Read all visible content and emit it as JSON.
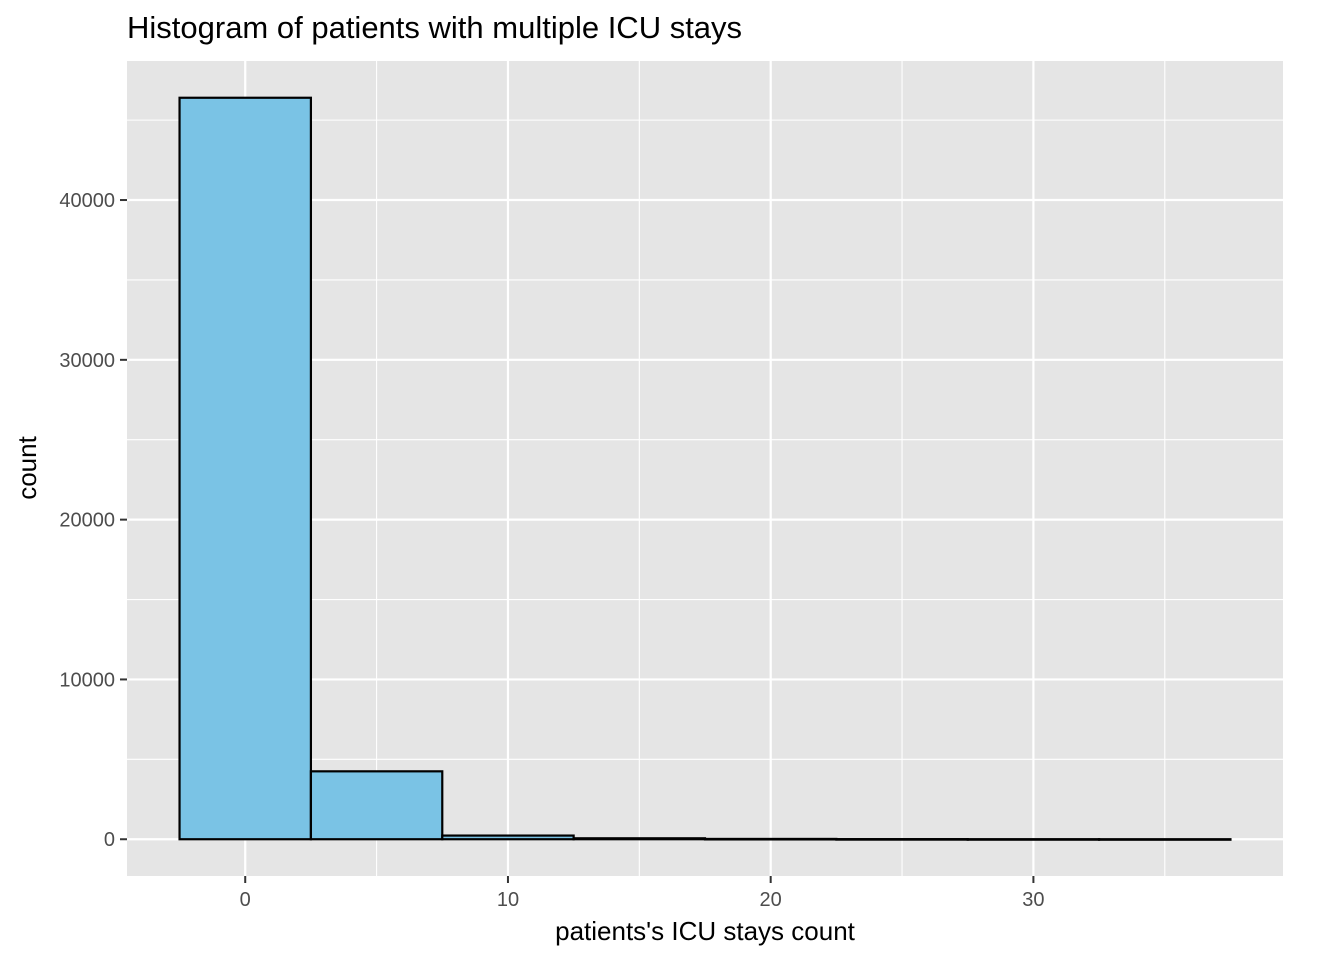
{
  "chart_data": {
    "type": "bar",
    "title": "Histogram of patients with multiple ICU stays",
    "xlabel": "patients's ICU stays count",
    "ylabel": "count",
    "bins": [
      {
        "x0": -2.5,
        "x1": 2.5,
        "count": 46400
      },
      {
        "x0": 2.5,
        "x1": 7.5,
        "count": 4250
      },
      {
        "x0": 7.5,
        "x1": 12.5,
        "count": 230
      },
      {
        "x0": 12.5,
        "x1": 17.5,
        "count": 60
      },
      {
        "x0": 17.5,
        "x1": 22.5,
        "count": 20
      },
      {
        "x0": 22.5,
        "x1": 27.5,
        "count": 8
      },
      {
        "x0": 27.5,
        "x1": 32.5,
        "count": 4
      },
      {
        "x0": 32.5,
        "x1": 37.5,
        "count": 2
      }
    ],
    "xlim": [
      -4.5,
      39.5
    ],
    "ylim": [
      -2300,
      48700
    ],
    "x_ticks": [
      0,
      10,
      20,
      30
    ],
    "x_tick_labels": [
      "0",
      "10",
      "20",
      "30"
    ],
    "y_ticks": [
      0,
      10000,
      20000,
      30000,
      40000
    ],
    "y_tick_labels": [
      "0",
      "10000",
      "20000",
      "30000",
      "40000"
    ],
    "grid": true,
    "colors": {
      "panel": "#e5e5e5",
      "grid": "#ffffff",
      "bar_fill": "#7ac3e5",
      "bar_stroke": "#000000"
    }
  }
}
